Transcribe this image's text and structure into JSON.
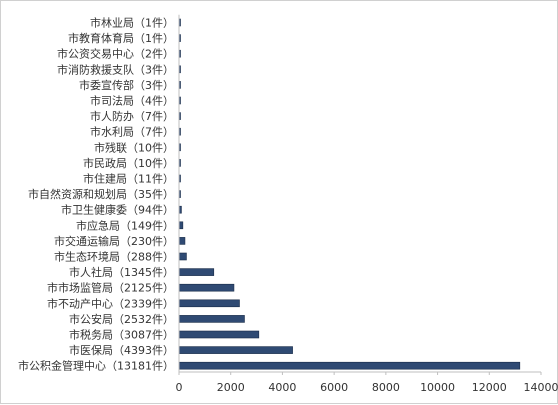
{
  "chart_data": {
    "type": "bar",
    "orientation": "horizontal",
    "categories": [
      "市林业局（1件）",
      "市教育体育局（1件）",
      "市公资交易中心（2件）",
      "市消防救援支队（3件）",
      "市委宣传部（3件）",
      "市司法局（4件）",
      "市人防办（7件）",
      "市水利局（7件）",
      "市残联（10件）",
      "市民政局（10件）",
      "市住建局（11件）",
      "市自然资源和规划局（35件）",
      "市卫生健康委（94件）",
      "市应急局（149件）",
      "市交通运输局（230件）",
      "市生态环境局（288件）",
      "市人社局（1345件）",
      "市市场监管局（2125件）",
      "市不动产中心（2339件）",
      "市公安局（2532件）",
      "市税务局（3087件）",
      "市医保局（4393件）",
      "市公积金管理中心（13181件）"
    ],
    "values": [
      1,
      1,
      2,
      3,
      3,
      4,
      7,
      7,
      10,
      10,
      11,
      35,
      94,
      149,
      230,
      288,
      1345,
      2125,
      2339,
      2532,
      3087,
      4393,
      13181
    ],
    "xlim": [
      0,
      14000
    ],
    "xticks": [
      0,
      2000,
      4000,
      6000,
      8000,
      10000,
      12000,
      14000
    ],
    "grid": false,
    "legend": "none",
    "bar_color": "#2f4a73",
    "bar_edge_color": "#1a2c48",
    "title": "",
    "xlabel": "",
    "ylabel": ""
  }
}
